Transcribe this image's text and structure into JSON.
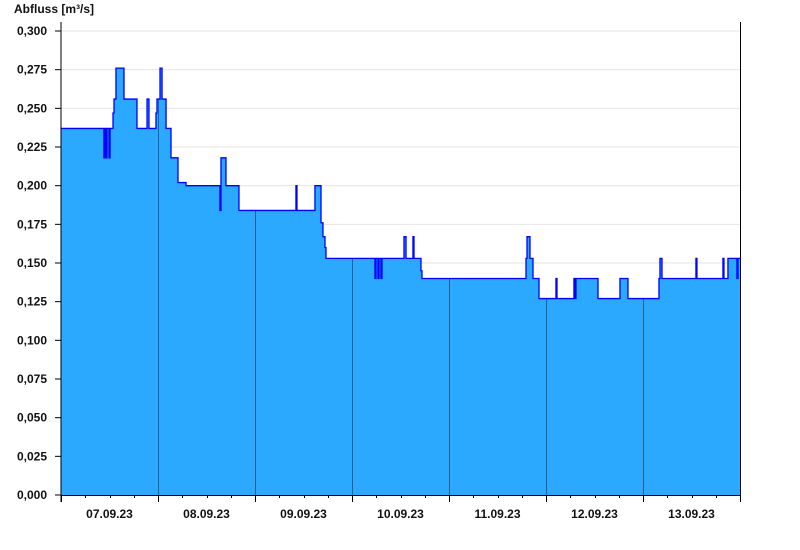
{
  "chart_data": {
    "type": "area",
    "step": true,
    "title": "",
    "ylabel": "Abfluss [m³/s]",
    "xlabel": "",
    "ylim": [
      0,
      0.3
    ],
    "xlim": [
      "2023-09-07T00:00",
      "2023-09-14T00:00"
    ],
    "yticks": [
      "0,000",
      "0,025",
      "0,050",
      "0,075",
      "0,100",
      "0,125",
      "0,150",
      "0,175",
      "0,200",
      "0,225",
      "0,250",
      "0,275",
      "0,300"
    ],
    "xticks": [
      "07.09.23",
      "08.09.23",
      "09.09.23",
      "10.09.23",
      "11.09.23",
      "12.09.23",
      "13.09.23"
    ],
    "grid": true,
    "colors": {
      "fill": "#2ba8ff",
      "line": "#0000ff",
      "day_line": "#2a5f8a",
      "grid": "#e6e6e6"
    },
    "points": [
      [
        "2023-09-07T00:00",
        0.237
      ],
      [
        "2023-09-07T10:38",
        0.218
      ],
      [
        "2023-09-07T10:53",
        0.237
      ],
      [
        "2023-09-07T11:08",
        0.218
      ],
      [
        "2023-09-07T11:23",
        0.237
      ],
      [
        "2023-09-07T11:53",
        0.218
      ],
      [
        "2023-09-07T12:08",
        0.237
      ],
      [
        "2023-09-07T12:52",
        0.247
      ],
      [
        "2023-09-07T13:07",
        0.256
      ],
      [
        "2023-09-07T13:36",
        0.276
      ],
      [
        "2023-09-07T15:35",
        0.256
      ],
      [
        "2023-09-07T18:48",
        0.237
      ],
      [
        "2023-09-07T21:17",
        0.256
      ],
      [
        "2023-09-07T21:46",
        0.237
      ],
      [
        "2023-09-07T23:30",
        0.247
      ],
      [
        "2023-09-07T23:45",
        0.256
      ],
      [
        "2023-09-08T00:30",
        0.276
      ],
      [
        "2023-09-08T01:00",
        0.256
      ],
      [
        "2023-09-08T02:00",
        0.237
      ],
      [
        "2023-09-08T03:13",
        0.218
      ],
      [
        "2023-09-08T04:57",
        0.202
      ],
      [
        "2023-09-08T06:56",
        0.2
      ],
      [
        "2023-09-08T15:20",
        0.184
      ],
      [
        "2023-09-08T15:35",
        0.218
      ],
      [
        "2023-09-08T16:49",
        0.2
      ],
      [
        "2023-09-08T20:02",
        0.184
      ],
      [
        "2023-09-09T10:08",
        0.2
      ],
      [
        "2023-09-09T10:23",
        0.184
      ],
      [
        "2023-09-09T14:50",
        0.2
      ],
      [
        "2023-09-09T16:20",
        0.176
      ],
      [
        "2023-09-09T16:49",
        0.167
      ],
      [
        "2023-09-09T17:19",
        0.16
      ],
      [
        "2023-09-09T17:34",
        0.153
      ],
      [
        "2023-09-10T05:41",
        0.14
      ],
      [
        "2023-09-10T05:56",
        0.153
      ],
      [
        "2023-09-10T06:26",
        0.14
      ],
      [
        "2023-09-10T06:41",
        0.153
      ],
      [
        "2023-09-10T07:10",
        0.14
      ],
      [
        "2023-09-10T07:25",
        0.153
      ],
      [
        "2023-09-10T12:52",
        0.167
      ],
      [
        "2023-09-10T13:22",
        0.153
      ],
      [
        "2023-09-10T15:05",
        0.167
      ],
      [
        "2023-09-10T15:20",
        0.153
      ],
      [
        "2023-09-10T17:04",
        0.145
      ],
      [
        "2023-09-10T17:19",
        0.14
      ],
      [
        "2023-09-11T19:03",
        0.153
      ],
      [
        "2023-09-11T19:18",
        0.167
      ],
      [
        "2023-09-11T20:02",
        0.153
      ],
      [
        "2023-09-11T20:47",
        0.14
      ],
      [
        "2023-09-11T22:16",
        0.127
      ],
      [
        "2023-09-12T02:28",
        0.14
      ],
      [
        "2023-09-12T02:43",
        0.127
      ],
      [
        "2023-09-12T06:55",
        0.14
      ],
      [
        "2023-09-12T07:10",
        0.127
      ],
      [
        "2023-09-12T07:25",
        0.14
      ],
      [
        "2023-09-12T12:52",
        0.127
      ],
      [
        "2023-09-12T18:18",
        0.14
      ],
      [
        "2023-09-12T20:17",
        0.127
      ],
      [
        "2023-09-13T03:57",
        0.14
      ],
      [
        "2023-09-13T04:12",
        0.153
      ],
      [
        "2023-09-13T04:42",
        0.14
      ],
      [
        "2023-09-13T13:06",
        0.153
      ],
      [
        "2023-09-13T13:21",
        0.14
      ],
      [
        "2023-09-13T19:47",
        0.153
      ],
      [
        "2023-09-13T20:02",
        0.14
      ],
      [
        "2023-09-13T21:01",
        0.153
      ],
      [
        "2023-09-13T23:15",
        0.14
      ],
      [
        "2023-09-13T23:30",
        0.153
      ]
    ]
  }
}
